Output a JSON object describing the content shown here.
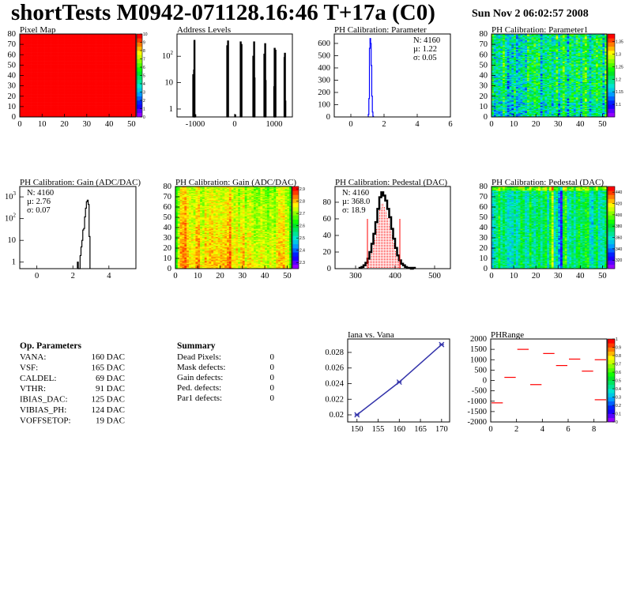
{
  "header": {
    "title": "shortTests M0942-071128.16:46 T+17a (C0)",
    "date": "Sun Nov  2 06:02:57 2008"
  },
  "colors": {
    "hist": "#000000",
    "param_hist": "#0000ff",
    "pedestal_stats": "#ff0000",
    "graph": "#3333aa",
    "phrange_lines": "#ff0000",
    "frame": "#000000"
  },
  "chart_data": [
    {
      "id": "pixelmap",
      "type": "heatmap",
      "title": "Pixel Map",
      "xlim": [
        0,
        52
      ],
      "ylim": [
        0,
        80
      ],
      "xticks": [
        0,
        10,
        20,
        30,
        40,
        50
      ],
      "yticks": [
        0,
        10,
        20,
        30,
        40,
        50,
        60,
        70,
        80
      ],
      "zlim": [
        0,
        10
      ],
      "zticks": [
        "0",
        "1",
        "2",
        "3",
        "4",
        "5",
        "6",
        "7",
        "8",
        "9",
        "10"
      ],
      "uniform_value": 10
    },
    {
      "id": "address",
      "type": "bar",
      "title": "Address Levels",
      "log_y": true,
      "xlim": [
        -1460,
        1460
      ],
      "ylim": [
        0.5,
        700
      ],
      "xticks": [
        -1000,
        0,
        1000
      ],
      "yticks": [
        "1",
        "10",
        "10^2"
      ],
      "bin_width": 20,
      "bins": [
        [
          -1060,
          20
        ],
        [
          -1040,
          30
        ],
        [
          -1030,
          400
        ],
        [
          -1010,
          0.6
        ],
        [
          -200,
          250
        ],
        [
          -180,
          380
        ],
        [
          0,
          0.6
        ],
        [
          140,
          350
        ],
        [
          160,
          280
        ],
        [
          460,
          100
        ],
        [
          480,
          350
        ],
        [
          490,
          15
        ],
        [
          740,
          120
        ],
        [
          760,
          300
        ],
        [
          770,
          12
        ],
        [
          990,
          7
        ],
        [
          1000,
          200
        ],
        [
          1010,
          2
        ],
        [
          1020,
          170
        ],
        [
          1250,
          90
        ],
        [
          1260,
          130
        ],
        [
          1270,
          2
        ]
      ]
    },
    {
      "id": "param",
      "type": "bar",
      "title": "PH Calibration: Parameter",
      "xlim": [
        -1,
        6
      ],
      "ylim": [
        0,
        677
      ],
      "xticks": [
        0,
        2,
        4,
        6
      ],
      "yticks": [
        0,
        100,
        200,
        300,
        400,
        500,
        600
      ],
      "bin_width": 0.035,
      "bins": [
        [
          1.05,
          20
        ],
        [
          1.085,
          150
        ],
        [
          1.12,
          560
        ],
        [
          1.155,
          640
        ],
        [
          1.19,
          600
        ],
        [
          1.225,
          420
        ],
        [
          1.26,
          170
        ],
        [
          1.295,
          40
        ],
        [
          1.33,
          5
        ]
      ],
      "stats": {
        "n": "N: 4160",
        "mean": "µ: 1.22",
        "sigma": "σ: 0.05"
      }
    },
    {
      "id": "param1",
      "type": "heatmap",
      "title": "PH Calibration: Parameter1",
      "xlim": [
        0,
        52
      ],
      "ylim": [
        0,
        80
      ],
      "xticks": [
        0,
        10,
        20,
        30,
        40,
        50
      ],
      "yticks": [
        0,
        10,
        20,
        30,
        40,
        50,
        60,
        70,
        80
      ],
      "zlim": [
        1.05,
        1.38
      ],
      "zticks": [
        "1.1",
        "1.15",
        "1.2",
        "1.25",
        "1.3",
        "1.35"
      ]
    },
    {
      "id": "gain",
      "type": "bar",
      "title": "PH Calibration: Gain (ADC/DAC)",
      "log_y": true,
      "xlim": [
        -0.95,
        5.5
      ],
      "ylim": [
        0.5,
        3000
      ],
      "xticks": [
        0,
        2,
        4
      ],
      "yticks": [
        "1",
        "10",
        "10^2",
        "10^3"
      ],
      "bin_width": 0.05,
      "bins": [
        [
          2.25,
          1
        ],
        [
          2.3,
          0.5
        ],
        [
          2.35,
          0.5
        ],
        [
          2.4,
          2
        ],
        [
          2.45,
          5
        ],
        [
          2.5,
          10
        ],
        [
          2.55,
          30
        ],
        [
          2.6,
          35
        ],
        [
          2.65,
          120
        ],
        [
          2.7,
          300
        ],
        [
          2.75,
          600
        ],
        [
          2.8,
          700
        ],
        [
          2.85,
          450
        ],
        [
          2.9,
          15
        ]
      ],
      "stats": {
        "n": "N: 4160",
        "mean": "µ: 2.76",
        "sigma": "σ: 0.07"
      }
    },
    {
      "id": "gainmap",
      "type": "heatmap",
      "title": "PH Calibration: Gain (ADC/DAC)",
      "xlim": [
        0,
        52
      ],
      "ylim": [
        0,
        80
      ],
      "xticks": [
        0,
        10,
        20,
        30,
        40,
        50
      ],
      "yticks": [
        0,
        10,
        20,
        30,
        40,
        50,
        60,
        70,
        80
      ],
      "zlim": [
        2.25,
        2.92
      ],
      "zticks": [
        "2.3",
        "2.4",
        "2.5",
        "2.6",
        "2.7",
        "2.8",
        "2.9"
      ]
    },
    {
      "id": "pedestal",
      "type": "bar",
      "title": "PH Calibration: Pedestal (DAC)",
      "xlim": [
        248,
        540
      ],
      "ylim": [
        0,
        99
      ],
      "xticks": [
        300,
        400,
        500
      ],
      "yticks": [
        0,
        20,
        40,
        60,
        80
      ],
      "bin_width": 5,
      "bins": [
        [
          310,
          1
        ],
        [
          315,
          2
        ],
        [
          320,
          4
        ],
        [
          325,
          7
        ],
        [
          330,
          12
        ],
        [
          335,
          20
        ],
        [
          340,
          30
        ],
        [
          345,
          42
        ],
        [
          350,
          56
        ],
        [
          355,
          72
        ],
        [
          360,
          86
        ],
        [
          365,
          92
        ],
        [
          370,
          88
        ],
        [
          375,
          82
        ],
        [
          380,
          72
        ],
        [
          385,
          62
        ],
        [
          390,
          48
        ],
        [
          395,
          36
        ],
        [
          400,
          25
        ],
        [
          405,
          16
        ],
        [
          410,
          10
        ],
        [
          415,
          6
        ],
        [
          420,
          4
        ],
        [
          425,
          2
        ],
        [
          430,
          1
        ],
        [
          435,
          1
        ],
        [
          440,
          0
        ],
        [
          445,
          1
        ]
      ],
      "cut_lines": [
        330,
        412
      ],
      "cut_height": 60,
      "stats": {
        "n": "N: 4160",
        "mean": "µ: 368.0",
        "sigma": "σ: 18.9"
      }
    },
    {
      "id": "pedmap",
      "type": "heatmap",
      "title": "PH Calibration: Pedestal (DAC)",
      "xlim": [
        0,
        52
      ],
      "ylim": [
        0,
        80
      ],
      "xticks": [
        0,
        10,
        20,
        30,
        40,
        50
      ],
      "yticks": [
        0,
        10,
        20,
        30,
        40,
        50,
        60,
        70,
        80
      ],
      "zlim": [
        305,
        450
      ],
      "zticks": [
        "320",
        "340",
        "360",
        "380",
        "400",
        "420",
        "440"
      ]
    },
    {
      "id": "iana",
      "type": "line",
      "title": "Iana vs. Vana",
      "xlim": [
        147.8,
        171.9
      ],
      "ylim": [
        0.01909,
        0.02972
      ],
      "xticks": [
        150,
        155,
        160,
        165,
        170
      ],
      "yticks": [
        "0.02",
        "0.022",
        "0.024",
        "0.026",
        "0.028"
      ],
      "x": [
        150,
        160,
        170
      ],
      "y": [
        0.02,
        0.0242,
        0.029
      ]
    },
    {
      "id": "phrange",
      "type": "line",
      "title": "PHRange",
      "xlim": [
        0,
        9
      ],
      "ylim": [
        -2000,
        2000
      ],
      "xticks": [
        0,
        2,
        4,
        6,
        8
      ],
      "yticks": [
        "-2000",
        "-1500",
        "-1000",
        "-500",
        "0",
        "500",
        "1000",
        "1500",
        "2000"
      ],
      "zlim": [
        0,
        1
      ],
      "zticks": [
        "0",
        "0.1",
        "0.2",
        "0.3",
        "0.4",
        "0.5",
        "0.6",
        "0.7",
        "0.8",
        "0.9",
        "1"
      ],
      "segments": [
        [
          0,
          1,
          -1080
        ],
        [
          1,
          2,
          150
        ],
        [
          2,
          3,
          1500
        ],
        [
          3,
          4,
          -200
        ],
        [
          4,
          5,
          1300
        ],
        [
          5,
          6,
          720
        ],
        [
          6,
          7,
          1030
        ],
        [
          7,
          8,
          450
        ],
        [
          8,
          9,
          1000
        ],
        [
          8,
          9,
          -930
        ]
      ]
    }
  ],
  "op_parameters": {
    "title": "Op. Parameters",
    "rows": [
      {
        "label": "VANA:",
        "value": "160 DAC"
      },
      {
        "label": "VSF:",
        "value": "165 DAC"
      },
      {
        "label": "CALDEL:",
        "value": "69 DAC"
      },
      {
        "label": "VTHR:",
        "value": "91 DAC"
      },
      {
        "label": "IBIAS_DAC:",
        "value": "125 DAC"
      },
      {
        "label": "VIBIAS_PH:",
        "value": "124 DAC"
      },
      {
        "label": "VOFFSETOP:",
        "value": "19 DAC"
      }
    ]
  },
  "summary": {
    "title": "Summary",
    "rows": [
      {
        "label": "Dead Pixels:",
        "value": "0",
        "color": "#000000"
      },
      {
        "label": "Mask defects:",
        "value": "0",
        "color": "#000000"
      },
      {
        "label": "Gain defects:",
        "value": "0",
        "color": "#000000"
      },
      {
        "label": "Ped. defects:",
        "value": "0",
        "color": "#ff0000"
      },
      {
        "label": "Par1 defects:",
        "value": "0",
        "color": "#0000ff"
      }
    ]
  }
}
